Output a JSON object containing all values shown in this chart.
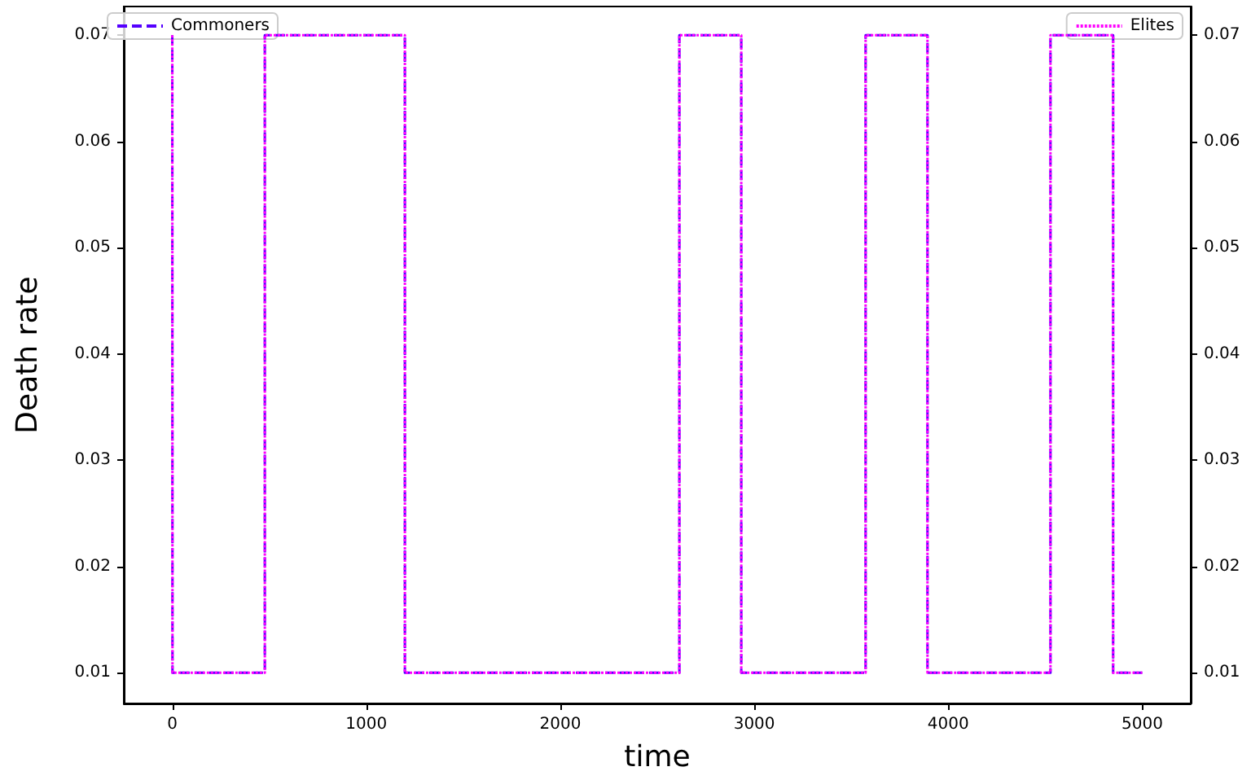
{
  "chart_data": {
    "type": "step",
    "xlabel": "time",
    "ylabel": "Death rate",
    "x": [
      0,
      1,
      477,
      1199,
      2614,
      2933,
      3574,
      3893,
      4527,
      4850,
      5000
    ],
    "series": [
      {
        "name": "Commoners",
        "color": "#5500ff",
        "line_style": "dashed",
        "values": [
          0.07,
          0.01,
          0.07,
          0.01,
          0.07,
          0.01,
          0.07,
          0.01,
          0.07,
          0.01,
          0.01
        ]
      },
      {
        "name": "Elites",
        "color": "#ff00ff",
        "line_style": "dotted",
        "axis": "y2",
        "values": [
          0.07,
          0.01,
          0.07,
          0.01,
          0.07,
          0.01,
          0.07,
          0.01,
          0.07,
          0.01,
          0.01
        ]
      }
    ],
    "xlim": [
      -250,
      5250
    ],
    "xticks": [
      0,
      1000,
      2000,
      3000,
      4000,
      5000
    ],
    "ylim": [
      0.0071,
      0.0727
    ],
    "yticks": [
      0.01,
      0.02,
      0.03,
      0.04,
      0.05,
      0.06,
      0.07
    ],
    "y2lim": [
      0.0071,
      0.0727
    ],
    "y2ticks": [
      0.01,
      0.02,
      0.03,
      0.04,
      0.05,
      0.06,
      0.07
    ],
    "marker": "none",
    "grid": false,
    "legend": "top left"
  }
}
